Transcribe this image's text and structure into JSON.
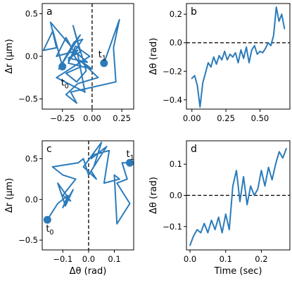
{
  "style": {
    "series_color": "#2b7bba"
  },
  "chart_data": [
    {
      "id": "a",
      "type": "line",
      "panel_label": "a",
      "xlabel": "",
      "ylabel": "Δr (μm)",
      "xlim": [
        -0.42,
        0.35
      ],
      "ylim": [
        -0.62,
        0.62
      ],
      "xticks": [
        -0.25,
        0.0,
        0.25
      ],
      "xtick_labels": [
        "−0.25",
        "0.00",
        "0.25"
      ],
      "yticks": [
        -0.5,
        0.0,
        0.5
      ],
      "ytick_labels": [
        "−0.5",
        "0.0",
        "0.5"
      ],
      "zero_line": "vertical x=0",
      "start_label": "t0",
      "end_label": "t1",
      "start_point": {
        "x": -0.25,
        "y": -0.12
      },
      "end_point": {
        "x": 0.1,
        "y": -0.08
      },
      "x": [
        -0.25,
        -0.33,
        -0.41,
        -0.3,
        -0.35,
        -0.18,
        -0.22,
        -0.3,
        -0.12,
        -0.2,
        -0.08,
        -0.15,
        -0.28,
        -0.1,
        -0.18,
        -0.04,
        -0.2,
        -0.1,
        -0.16,
        -0.05,
        -0.13,
        -0.22,
        -0.09,
        -0.17,
        -0.12,
        -0.06,
        -0.3,
        -0.02,
        -0.14,
        -0.2,
        0.0,
        -0.1,
        0.05,
        -0.12,
        -0.22,
        -0.13,
        -0.18,
        0.2,
        0.18,
        0.23,
        0.1
      ],
      "y": [
        -0.12,
        0.3,
        0.07,
        0.1,
        0.4,
        0.12,
        0.22,
        0.0,
        0.07,
        -0.05,
        0.2,
        0.17,
        -0.15,
        0.25,
        0.1,
        -0.07,
        -0.02,
        0.05,
        0.36,
        -0.17,
        -0.3,
        -0.2,
        -0.12,
        0.05,
        0.02,
        -0.42,
        -0.25,
        0.0,
        0.12,
        -0.08,
        -0.15,
        -0.05,
        -0.25,
        -0.32,
        -0.45,
        -0.55,
        -0.42,
        -0.3,
        0.1,
        0.43,
        -0.08
      ]
    },
    {
      "id": "b",
      "type": "line",
      "panel_label": "b",
      "xlabel": "",
      "ylabel": "Δθ (rad)",
      "xlim": [
        -0.04,
        0.72
      ],
      "ylim": [
        -0.465,
        0.275
      ],
      "xticks": [
        0.0,
        0.25,
        0.5
      ],
      "xtick_labels": [
        "0.00",
        "0.25",
        "0.50"
      ],
      "yticks": [
        -0.4,
        -0.2,
        0.0,
        0.2
      ],
      "ytick_labels": [
        "−0.4",
        "−0.2",
        "0.0",
        "0.2"
      ],
      "zero_line": "horizontal y=0",
      "x": [
        0.0,
        0.02,
        0.04,
        0.06,
        0.08,
        0.1,
        0.12,
        0.14,
        0.16,
        0.18,
        0.2,
        0.22,
        0.24,
        0.26,
        0.28,
        0.3,
        0.32,
        0.34,
        0.36,
        0.38,
        0.4,
        0.42,
        0.44,
        0.46,
        0.48,
        0.5,
        0.52,
        0.54,
        0.56,
        0.58,
        0.6,
        0.62,
        0.64,
        0.66,
        0.68
      ],
      "y": [
        -0.25,
        -0.23,
        -0.3,
        -0.45,
        -0.28,
        -0.21,
        -0.14,
        -0.17,
        -0.1,
        -0.15,
        -0.09,
        -0.12,
        -0.06,
        -0.12,
        -0.08,
        -0.1,
        -0.07,
        -0.14,
        -0.05,
        -0.11,
        -0.03,
        -0.14,
        -0.05,
        -0.02,
        -0.08,
        -0.06,
        -0.07,
        -0.04,
        0.0,
        -0.02,
        0.05,
        0.25,
        0.15,
        0.2,
        0.1
      ]
    },
    {
      "id": "c",
      "type": "line",
      "panel_label": "c",
      "xlabel": "Δθ (rad)",
      "ylabel": "Δr (μm)",
      "xlim": [
        -0.18,
        0.175
      ],
      "ylim": [
        -0.62,
        0.72
      ],
      "xticks": [
        -0.1,
        0.0,
        0.1
      ],
      "xtick_labels": [
        "−0.1",
        "0.0",
        "0.1"
      ],
      "yticks": [
        -0.5,
        0.0,
        0.5
      ],
      "ytick_labels": [
        "−0.5",
        "0.0",
        "0.5"
      ],
      "zero_line": "vertical x=0",
      "start_label": "t0",
      "end_label": "t1",
      "start_point": {
        "x": -0.16,
        "y": -0.25
      },
      "end_point": {
        "x": 0.16,
        "y": 0.45
      },
      "x": [
        -0.16,
        -0.12,
        -0.08,
        -0.1,
        -0.06,
        -0.09,
        -0.12,
        -0.07,
        -0.1,
        -0.05,
        -0.1,
        -0.14,
        -0.04,
        -0.02,
        0.0,
        0.02,
        0.05,
        -0.02,
        0.03,
        0.01,
        0.07,
        0.01,
        0.02,
        0.08,
        0.06,
        0.12,
        0.1,
        0.11,
        0.16,
        0.11,
        0.15,
        0.13,
        0.16
      ],
      "y": [
        -0.25,
        -0.05,
        0.05,
        -0.1,
        0.12,
        -0.08,
        0.2,
        -0.02,
        0.05,
        0.25,
        0.3,
        0.4,
        0.45,
        0.5,
        0.3,
        0.4,
        0.7,
        0.4,
        0.25,
        0.35,
        0.65,
        0.5,
        0.55,
        0.6,
        0.2,
        0.25,
        0.3,
        -0.3,
        -0.05,
        0.2,
        0.25,
        0.45,
        0.45
      ]
    },
    {
      "id": "d",
      "type": "line",
      "panel_label": "d",
      "xlabel": "Time (sec)",
      "ylabel": "Δθ (rad)",
      "xlim": [
        -0.01,
        0.28
      ],
      "ylim": [
        -0.175,
        0.175
      ],
      "xticks": [
        0.0,
        0.1,
        0.2
      ],
      "xtick_labels": [
        "0.0",
        "0.1",
        "0.2"
      ],
      "yticks": [
        -0.1,
        0.0,
        0.1
      ],
      "ytick_labels": [
        "−0.1",
        "0.0",
        "0.1"
      ],
      "zero_line": "horizontal y=0",
      "x": [
        0.0,
        0.01,
        0.02,
        0.03,
        0.04,
        0.05,
        0.06,
        0.07,
        0.08,
        0.09,
        0.1,
        0.11,
        0.12,
        0.13,
        0.14,
        0.15,
        0.16,
        0.17,
        0.18,
        0.19,
        0.2,
        0.21,
        0.22,
        0.23,
        0.24,
        0.25,
        0.26,
        0.27
      ],
      "y": [
        -0.16,
        -0.13,
        -0.11,
        -0.12,
        -0.09,
        -0.12,
        -0.08,
        -0.11,
        -0.07,
        -0.12,
        -0.06,
        -0.11,
        0.03,
        0.08,
        -0.02,
        0.06,
        -0.03,
        0.03,
        0.0,
        0.02,
        0.08,
        0.03,
        0.09,
        0.05,
        0.1,
        0.14,
        0.12,
        0.15
      ]
    }
  ]
}
